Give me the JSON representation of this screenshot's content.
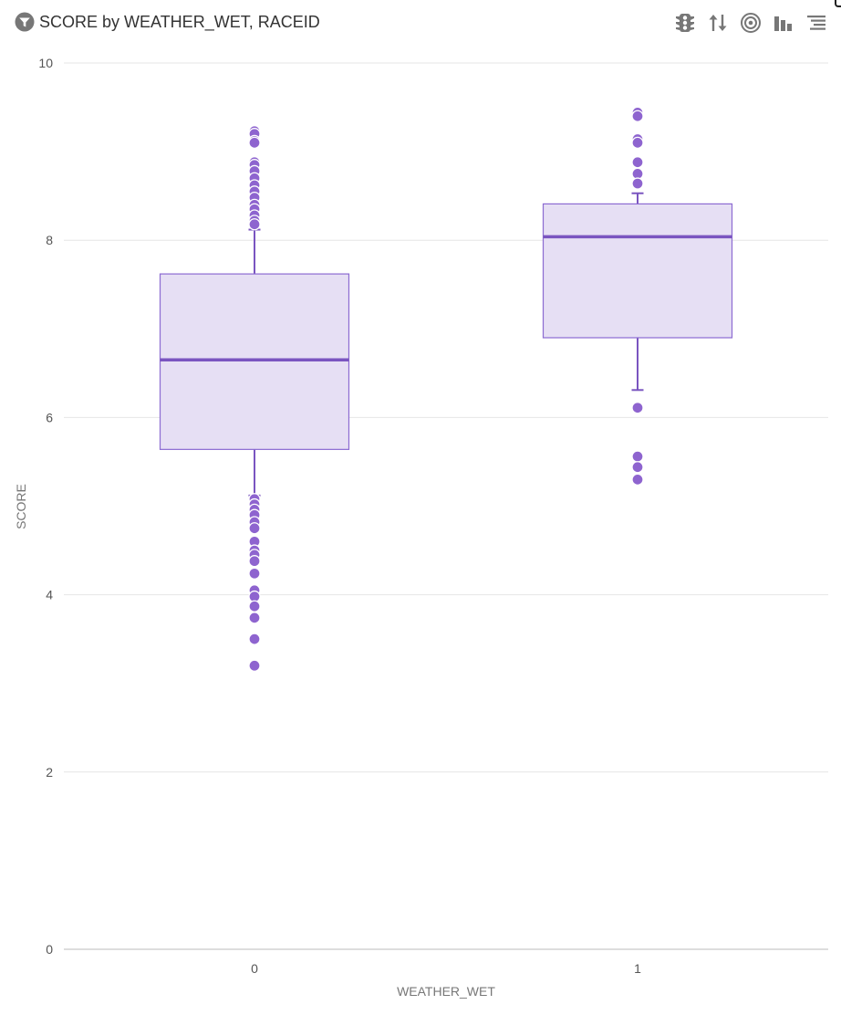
{
  "header": {
    "title": "SCORE by WEATHER_WET, RACEID",
    "icons": [
      "filter-icon",
      "traffic-light-icon",
      "sort-icon",
      "target-icon",
      "bar-chart-icon",
      "list-icon"
    ]
  },
  "colors": {
    "box_fill": "#e6dff4",
    "box_stroke": "#8c6bd2",
    "median": "#7a55c0",
    "outlier": "#8e64cf",
    "grid": "#e6e6e6",
    "axis": "#bbbbbb",
    "tick_text": "#555555",
    "label_text": "#777777",
    "icon": "#777777"
  },
  "chart_data": {
    "type": "boxplot",
    "title": "SCORE by WEATHER_WET, RACEID",
    "xlabel": "WEATHER_WET",
    "ylabel": "SCORE",
    "ylim": [
      0,
      10
    ],
    "yticks": [
      0,
      2,
      4,
      6,
      8,
      10
    ],
    "grid": true,
    "categories": [
      "0",
      "1"
    ],
    "boxes": [
      {
        "category": "0",
        "whisker_low": 5.12,
        "q1": 5.64,
        "median": 6.65,
        "q3": 7.62,
        "whisker_high": 8.12,
        "outliers": [
          9.23,
          9.2,
          9.12,
          9.1,
          8.88,
          8.85,
          8.78,
          8.7,
          8.62,
          8.55,
          8.48,
          8.4,
          8.35,
          8.28,
          8.22,
          8.18,
          5.08,
          5.02,
          4.96,
          4.9,
          4.82,
          4.75,
          4.6,
          4.5,
          4.45,
          4.38,
          4.24,
          4.05,
          3.98,
          3.87,
          3.74,
          3.5,
          3.2
        ]
      },
      {
        "category": "1",
        "whisker_low": 6.31,
        "q1": 6.9,
        "median": 8.04,
        "q3": 8.41,
        "whisker_high": 8.53,
        "outliers": [
          9.44,
          9.4,
          9.14,
          9.1,
          8.88,
          8.75,
          8.64,
          6.11,
          5.56,
          5.44,
          5.3
        ]
      }
    ]
  }
}
